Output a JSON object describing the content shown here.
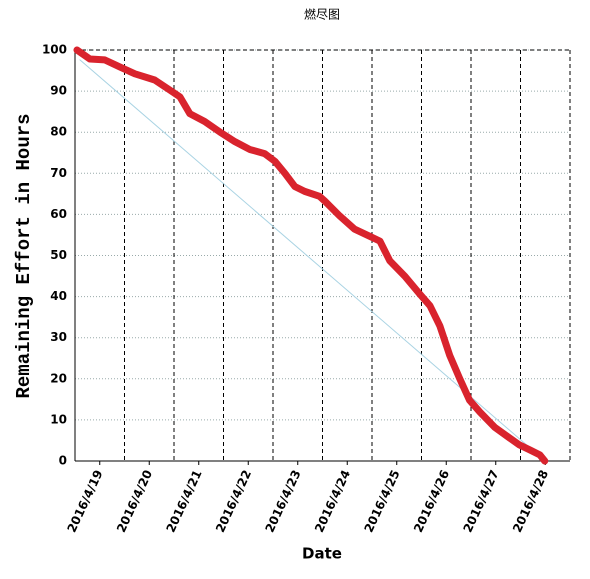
{
  "chart_data": {
    "type": "line",
    "title": "燃尽图",
    "x_label": "Date",
    "y_label": "Remaining Effort in Hours",
    "xlim": [
      -0.5,
      9.5
    ],
    "ylim": [
      0,
      100
    ],
    "xticks": [
      {
        "value": 0,
        "label": "2016/4/19"
      },
      {
        "value": 1,
        "label": "2016/4/20"
      },
      {
        "value": 2,
        "label": "2016/4/21"
      },
      {
        "value": 3,
        "label": "2016/4/22"
      },
      {
        "value": 4,
        "label": "2016/4/23"
      },
      {
        "value": 5,
        "label": "2016/4/24"
      },
      {
        "value": 6,
        "label": "2016/4/25"
      },
      {
        "value": 7,
        "label": "2016/4/26"
      },
      {
        "value": 8,
        "label": "2016/4/27"
      },
      {
        "value": 9,
        "label": "2016/4/28"
      }
    ],
    "yticks": [
      0,
      10,
      20,
      30,
      40,
      50,
      60,
      70,
      80,
      90,
      100
    ],
    "grid": true,
    "series": [
      {
        "color": "#a9d3e3",
        "width": 1,
        "x": [
          -0.4,
          9
        ],
        "values": [
          97.6,
          0
        ]
      },
      {
        "color": "#d9232d",
        "width": 7,
        "x": [
          -0.46,
          -0.2,
          0.1,
          0.4,
          0.71,
          1.11,
          1.41,
          1.62,
          1.82,
          2.12,
          2.42,
          2.73,
          3.03,
          3.33,
          3.54,
          3.74,
          3.94,
          4.14,
          4.44,
          4.55,
          4.85,
          5.15,
          5.45,
          5.66,
          5.86,
          6.16,
          6.46,
          6.67,
          6.87,
          7.07,
          7.27,
          7.47,
          7.68,
          7.98,
          8.28,
          8.48,
          8.69,
          8.89,
          8.99
        ],
        "values": [
          100,
          97.8,
          97.6,
          95.9,
          94.2,
          92.7,
          90.3,
          88.6,
          84.5,
          82.6,
          80.1,
          77.7,
          75.8,
          74.8,
          72.9,
          70,
          66.8,
          65.6,
          64.4,
          63.2,
          59.6,
          56.4,
          54.7,
          53.5,
          48.7,
          45,
          40.7,
          37.8,
          32.9,
          25.7,
          20.1,
          14.8,
          11.9,
          8.2,
          5.6,
          3.9,
          2.7,
          1.5,
          0
        ]
      }
    ]
  }
}
